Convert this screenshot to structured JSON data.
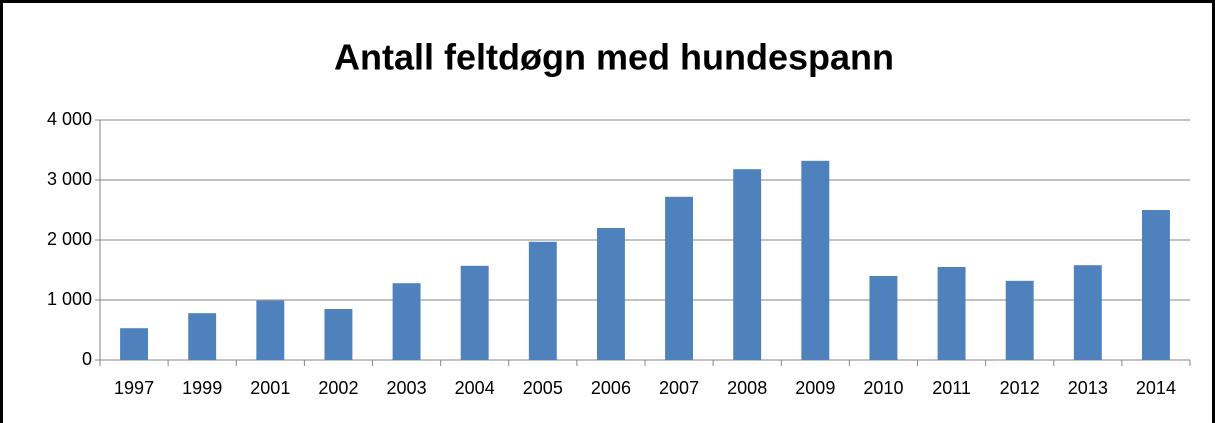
{
  "chart_data": {
    "type": "bar",
    "title": "Antall feltdøgn med hundespann",
    "categories": [
      "1997",
      "1999",
      "2001",
      "2002",
      "2003",
      "2004",
      "2005",
      "2006",
      "2007",
      "2008",
      "2009",
      "2010",
      "2011",
      "2012",
      "2013",
      "2014"
    ],
    "values": [
      530,
      780,
      990,
      850,
      1280,
      1570,
      1970,
      2200,
      2720,
      3180,
      3320,
      1400,
      1550,
      1320,
      1580,
      2500
    ],
    "color": "#4f81bd",
    "ylim": [
      0,
      4000
    ],
    "yticks": [
      0,
      {
        "value": 1000,
        "label": "1 000"
      },
      {
        "value": 2000,
        "label": "2 000"
      },
      {
        "value": 3000,
        "label": "3 000"
      },
      {
        "value": 4000,
        "label": "4 000"
      }
    ],
    "grid": true
  }
}
